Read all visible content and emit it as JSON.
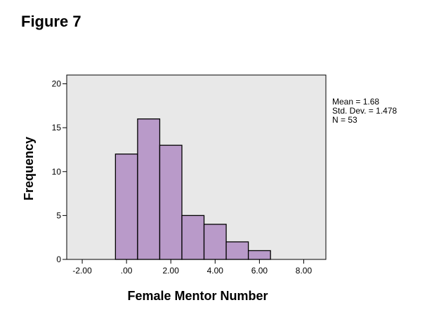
{
  "figure_label": "Figure 7",
  "colors": {
    "plot_background": "#e8e8e8",
    "bar_fill": "#b99ac9",
    "bar_stroke": "#000000"
  },
  "chart_data": {
    "type": "bar",
    "title": "",
    "xlabel": "Female Mentor Number",
    "ylabel": "Frequency",
    "bin_width": 1.0,
    "bins": [
      {
        "start": -0.5,
        "end": 0.5,
        "count": 12
      },
      {
        "start": 0.5,
        "end": 1.5,
        "count": 16
      },
      {
        "start": 1.5,
        "end": 2.5,
        "count": 13
      },
      {
        "start": 2.5,
        "end": 3.5,
        "count": 5
      },
      {
        "start": 3.5,
        "end": 4.5,
        "count": 4
      },
      {
        "start": 4.5,
        "end": 5.5,
        "count": 2
      },
      {
        "start": 5.5,
        "end": 6.5,
        "count": 1
      }
    ],
    "xlim": [
      -2.7,
      9.0
    ],
    "ylim": [
      0,
      21
    ],
    "x_ticks": [
      {
        "value": -2,
        "label": "-2.00"
      },
      {
        "value": 0,
        "label": ".00"
      },
      {
        "value": 2,
        "label": "2.00"
      },
      {
        "value": 4,
        "label": "4.00"
      },
      {
        "value": 6,
        "label": "6.00"
      },
      {
        "value": 8,
        "label": "8.00"
      }
    ],
    "y_ticks": [
      {
        "value": 0,
        "label": "0"
      },
      {
        "value": 5,
        "label": "5"
      },
      {
        "value": 10,
        "label": "10"
      },
      {
        "value": 15,
        "label": "15"
      },
      {
        "value": 20,
        "label": "20"
      }
    ],
    "stats": [
      "Mean = 1.68",
      "Std. Dev. = 1.478",
      "N = 53"
    ],
    "grid": false
  }
}
